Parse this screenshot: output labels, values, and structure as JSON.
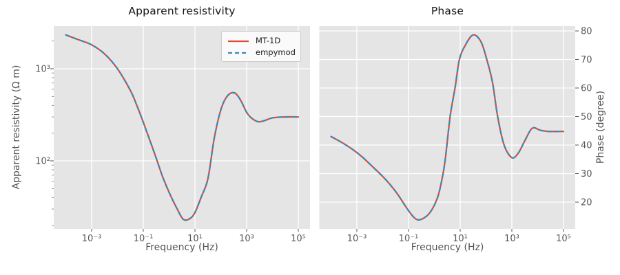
{
  "figure": {
    "background": "#ffffff",
    "plot_background": "#E5E5E5",
    "grid_color": "#FFFFFF",
    "tick_text_color": "#555555",
    "title_color": "#141414"
  },
  "chart_data": [
    {
      "type": "line",
      "title": "Apparent resistivity",
      "xlabel": "Frequency (Hz)",
      "ylabel": "Apparent resistivity (Ω m)",
      "xscale": "log",
      "yscale": "log",
      "x_range_hz": [
        0.0001,
        100000
      ],
      "ylim_ohm_m": [
        18,
        2900
      ],
      "x_tick_log10": [
        -3,
        -1,
        1,
        3,
        5
      ],
      "x_tick_labels": [
        "10⁻³",
        "10⁻¹",
        "10¹",
        "10³",
        "10⁵"
      ],
      "y_tick_values": [
        1000,
        100
      ],
      "y_tick_labels": [
        "10³",
        "10²"
      ],
      "grid": true,
      "legend": {
        "position": "upper right",
        "entries": [
          {
            "label": "MT-1D",
            "color": "#E24A33",
            "style": "solid"
          },
          {
            "label": "empymod",
            "color": "#348ABD",
            "style": "dashed"
          }
        ]
      },
      "x_log10_hz": [
        -4.0,
        -3.5,
        -3.0,
        -2.5,
        -2.0,
        -1.5,
        -1.25,
        -1.0,
        -0.75,
        -0.5,
        -0.25,
        0.0,
        0.3,
        0.55,
        0.8,
        1.0,
        1.25,
        1.5,
        1.75,
        2.0,
        2.25,
        2.52,
        2.75,
        3.0,
        3.2,
        3.45,
        3.7,
        4.0,
        4.5,
        5.0
      ],
      "series": [
        {
          "name": "MT-1D",
          "values": [
            2330,
            2060,
            1820,
            1450,
            1000,
            580,
            400,
            262,
            168,
            107,
            67,
            45.5,
            30.5,
            23.2,
            23.6,
            27.5,
            41,
            64,
            178,
            357,
            505,
            548,
            465,
            337,
            290,
            266,
            274,
            293,
            300,
            300
          ]
        },
        {
          "name": "empymod",
          "values": [
            2330,
            2060,
            1820,
            1450,
            1000,
            580,
            400,
            262,
            168,
            107,
            67,
            45.5,
            30.5,
            23.2,
            23.6,
            27.5,
            41,
            64,
            178,
            357,
            505,
            548,
            465,
            337,
            290,
            266,
            274,
            293,
            300,
            300
          ]
        }
      ]
    },
    {
      "type": "line",
      "title": "Phase",
      "xlabel": "Frequency (Hz)",
      "ylabel": "Phase (degree)",
      "xscale": "log",
      "yscale": "linear",
      "x_range_hz": [
        0.0001,
        100000
      ],
      "ylim_degree": [
        10.5,
        81.5
      ],
      "x_tick_log10": [
        -3,
        -1,
        1,
        3,
        5
      ],
      "x_tick_labels": [
        "10⁻³",
        "10⁻¹",
        "10¹",
        "10³",
        "10⁵"
      ],
      "y_tick_values": [
        20,
        30,
        40,
        50,
        60,
        70,
        80
      ],
      "y_tick_labels": [
        "20",
        "30",
        "40",
        "50",
        "60",
        "70",
        "80"
      ],
      "grid": true,
      "x_log10_hz": [
        -4.0,
        -3.6,
        -3.2,
        -2.8,
        -2.4,
        -2.0,
        -1.7,
        -1.4,
        -1.15,
        -0.9,
        -0.68,
        -0.45,
        -0.2,
        0.03,
        0.2,
        0.4,
        0.61,
        0.8,
        0.97,
        1.2,
        1.5,
        1.8,
        2.03,
        2.25,
        2.45,
        2.7,
        3.0,
        3.25,
        3.5,
        3.79,
        4.1,
        4.4,
        5.0
      ],
      "series": [
        {
          "name": "MT-1D",
          "values": [
            43.0,
            41.0,
            38.7,
            35.9,
            32.5,
            29.0,
            26.0,
            22.5,
            19.0,
            15.8,
            13.9,
            14.2,
            16.0,
            19.5,
            24.0,
            33.5,
            50.0,
            60.0,
            70.0,
            75.0,
            78.6,
            76.3,
            70.0,
            62.0,
            50.0,
            40.0,
            35.6,
            37.2,
            41.5,
            45.9,
            45.2,
            44.8,
            44.8
          ]
        },
        {
          "name": "empymod",
          "values": [
            43.0,
            41.0,
            38.7,
            35.9,
            32.5,
            29.0,
            26.0,
            22.5,
            19.0,
            15.8,
            13.9,
            14.2,
            16.0,
            19.5,
            24.0,
            33.5,
            50.0,
            60.0,
            70.0,
            75.0,
            78.6,
            76.3,
            70.0,
            62.0,
            50.0,
            40.0,
            35.6,
            37.2,
            41.5,
            45.9,
            45.2,
            44.8,
            44.8
          ]
        }
      ]
    }
  ]
}
